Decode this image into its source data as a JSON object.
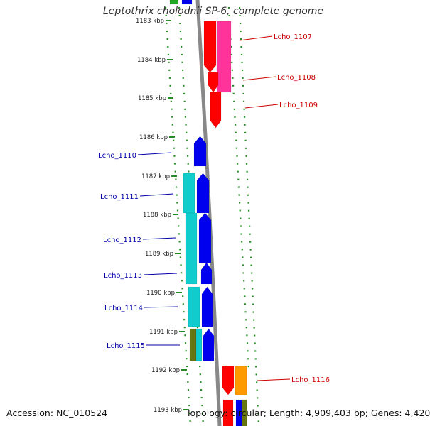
{
  "header": {
    "title": "Leptothrix cholodnii SP-6, complete genome"
  },
  "footer": {
    "accession": "Accession: NC_010524",
    "summary": "Topology: circular; Length: 4,909,403 bp; Genes: 4,420"
  },
  "colors": {
    "red": "#ff0000",
    "magenta": "#ff3399",
    "blue": "#0000ee",
    "cyan": "#11cccc",
    "orange": "#ff9900",
    "olive": "#667711",
    "green": "#22aa22",
    "backbone": "#888888",
    "ruler": "#228b22",
    "label_right": "#cc0000",
    "label_left": "#0000aa"
  },
  "ruler": {
    "ticks": [
      "1183 kbp",
      "1184 kbp",
      "1185 kbp",
      "1186 kbp",
      "1187 kbp",
      "1188 kbp",
      "1189 kbp",
      "1190 kbp",
      "1191 kbp",
      "1192 kbp",
      "1193 kbp"
    ]
  },
  "genes": {
    "right": [
      "Lcho_1107",
      "Lcho_1108",
      "Lcho_1109",
      "Lcho_1116"
    ],
    "left": [
      "Lcho_1110",
      "Lcho_1111",
      "Lcho_1112",
      "Lcho_1113",
      "Lcho_1114",
      "Lcho_1115"
    ]
  }
}
